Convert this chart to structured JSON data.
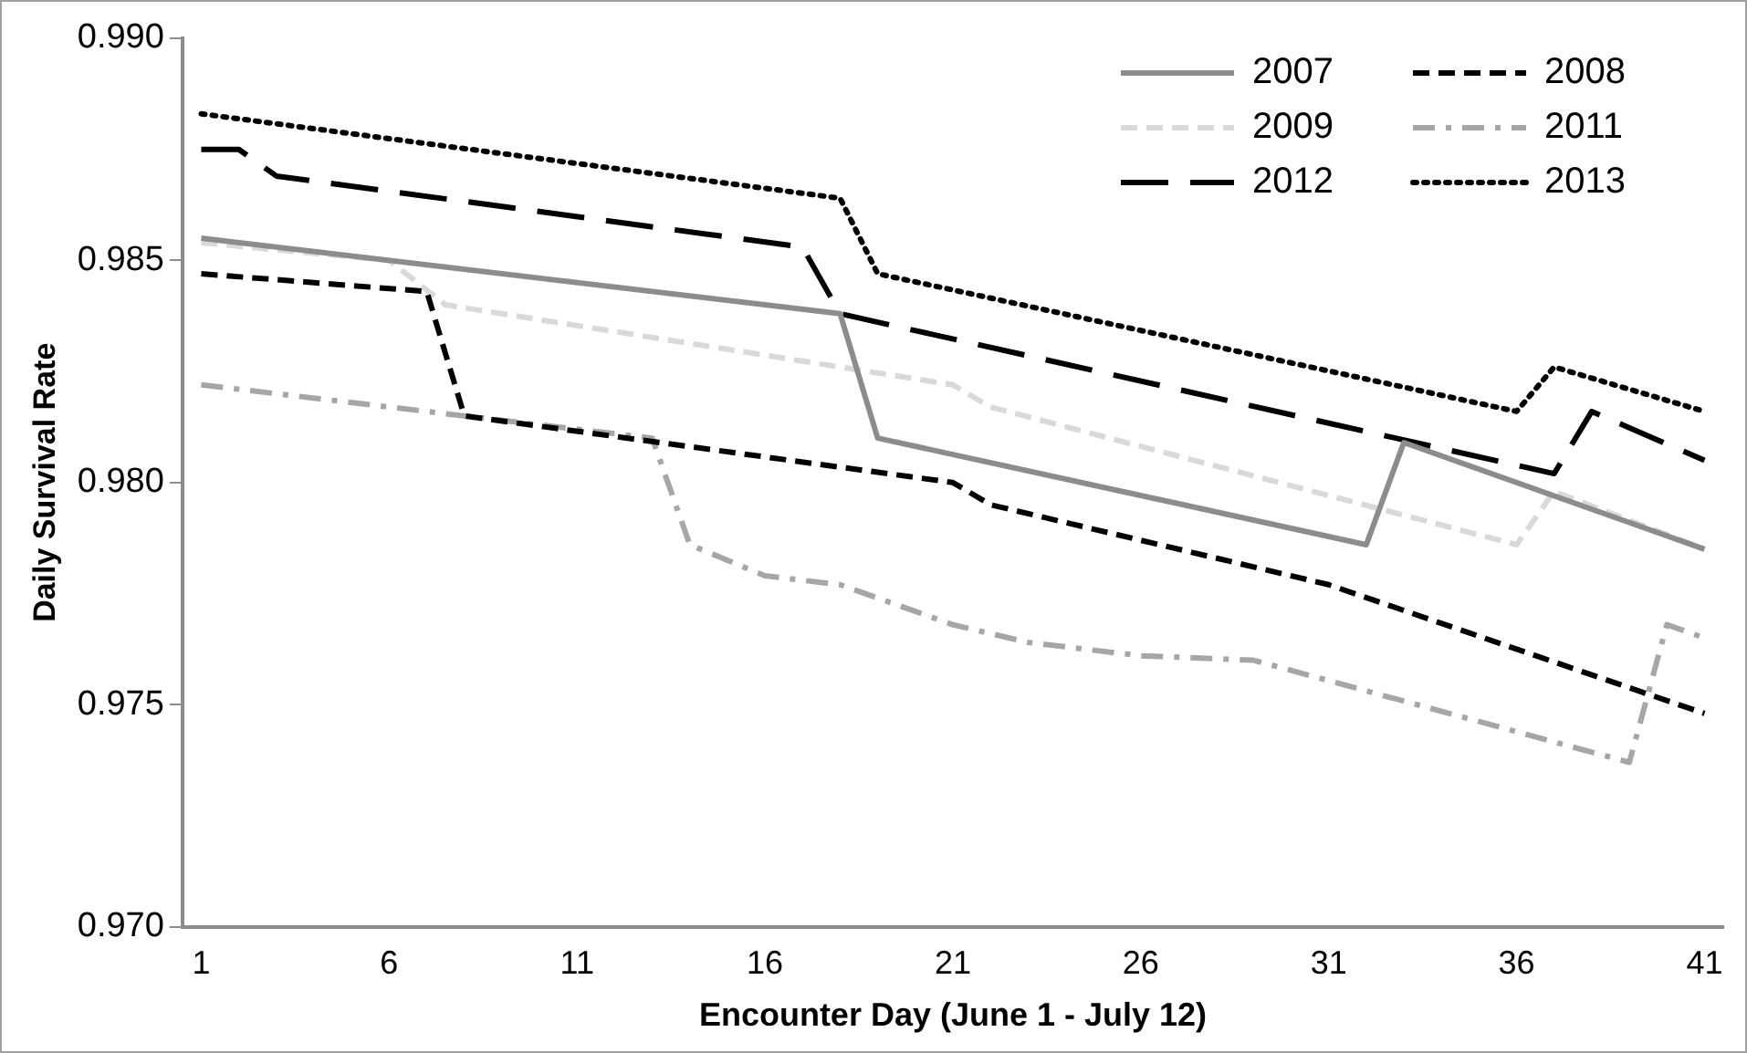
{
  "chart_data": {
    "type": "line",
    "xlabel": "Encounter Day (June 1 - July 12)",
    "ylabel": "Daily Survival Rate",
    "xlim": [
      0.5,
      41.5
    ],
    "xticks": [
      1,
      6,
      11,
      16,
      21,
      26,
      31,
      36,
      41
    ],
    "ylim": [
      0.97,
      0.99
    ],
    "yticks": [
      {
        "value": 0.97,
        "label": "0.970"
      },
      {
        "value": 0.975,
        "label": "0.975"
      },
      {
        "value": 0.98,
        "label": "0.980"
      },
      {
        "value": 0.985,
        "label": "0.985"
      },
      {
        "value": 0.99,
        "label": "0.990"
      }
    ],
    "grid": false,
    "legend": "top right",
    "marker": "none",
    "series": [
      {
        "name": "2007",
        "color": "#8c8c8c",
        "line_style": "solid",
        "x": [
          1,
          18,
          19,
          32,
          33,
          41
        ],
        "values": [
          0.9855,
          0.9838,
          0.981,
          0.9786,
          0.9809,
          0.9785
        ]
      },
      {
        "name": "2008",
        "color": "#000000",
        "line_style": "dashed",
        "x": [
          1,
          7,
          8,
          21,
          22,
          31,
          41
        ],
        "values": [
          0.9847,
          0.9843,
          0.9815,
          0.98,
          0.9795,
          0.9777,
          0.9748
        ]
      },
      {
        "name": "2009",
        "color": "#d9d9d9",
        "line_style": "dashed",
        "x": [
          1,
          6,
          7.5,
          21,
          22,
          36,
          37,
          41
        ],
        "values": [
          0.9854,
          0.985,
          0.984,
          0.9822,
          0.9817,
          0.9786,
          0.9798,
          0.9785
        ]
      },
      {
        "name": "2011",
        "color": "#a6a6a6",
        "line_style": "dashdot",
        "x": [
          1,
          13,
          14,
          16,
          18,
          21,
          23,
          26,
          29,
          39,
          40,
          41
        ],
        "values": [
          0.9822,
          0.981,
          0.9786,
          0.9779,
          0.9777,
          0.9768,
          0.9764,
          0.9761,
          0.976,
          0.9737,
          0.9768,
          0.9765
        ]
      },
      {
        "name": "2012",
        "color": "#000000",
        "line_style": "longdash",
        "x": [
          1,
          2,
          3,
          17,
          18,
          37,
          38,
          41
        ],
        "values": [
          0.9875,
          0.9875,
          0.9869,
          0.9853,
          0.9838,
          0.9802,
          0.9816,
          0.9805
        ]
      },
      {
        "name": "2013",
        "color": "#000000",
        "line_style": "dotted",
        "x": [
          1,
          18,
          19,
          36,
          37,
          41
        ],
        "values": [
          0.9883,
          0.9864,
          0.9847,
          0.9816,
          0.9826,
          0.9816
        ]
      }
    ]
  }
}
